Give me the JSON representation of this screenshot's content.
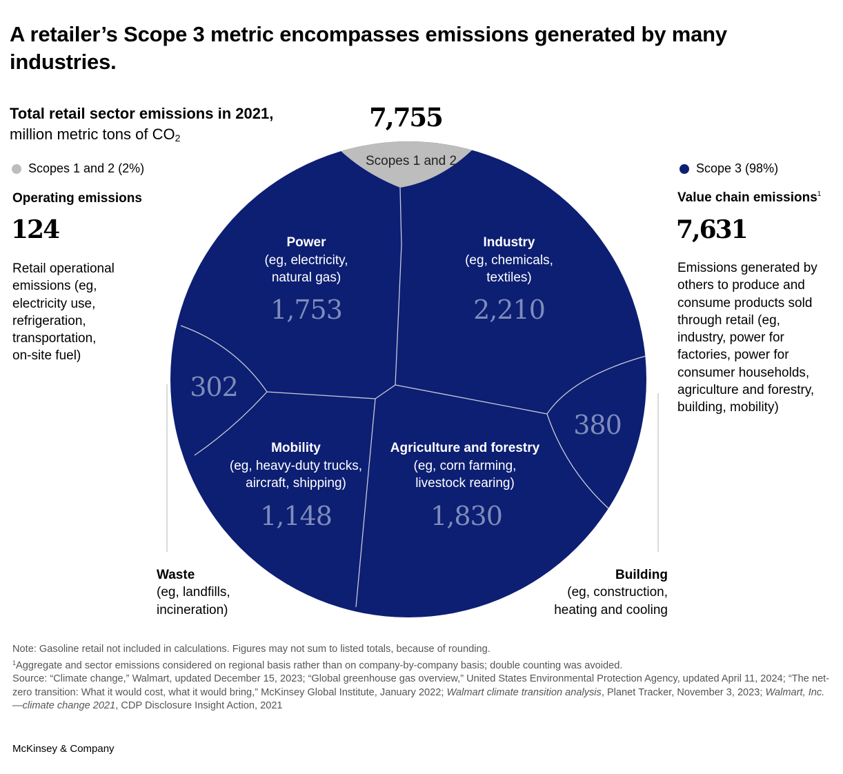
{
  "title": "A retailer’s Scope 3 metric encompasses emissions generated by many industries.",
  "subtitle": {
    "bold": "Total retail sector emissions in 2021,",
    "rest": " million metric tons of CO",
    "sub": "2"
  },
  "colors": {
    "scope3": "#0d1f73",
    "scope12": "#bdbdbd",
    "value_text": "#7f8cba",
    "divider": "#c8ccd8"
  },
  "left_panel": {
    "legend": "Scopes 1 and 2 (2%)",
    "heading": "Operating emissions",
    "value": "124",
    "description": [
      "Retail operational",
      "emissions (eg,",
      "electricity use,",
      "refrigeration,",
      "transportation,",
      "on-site fuel)"
    ]
  },
  "right_panel": {
    "legend": "Scope 3 (98%)",
    "heading": "Value chain emissions",
    "heading_note": "1",
    "value": "7,631",
    "description": [
      "Emissions generated by",
      "others to produce and",
      "consume products sold",
      "through retail (eg,",
      "industry, power for",
      "factories, power for",
      "consumer households,",
      "agriculture and forestry,",
      "building, mobility)"
    ]
  },
  "chart_data": {
    "type": "voronoi-treemap",
    "total": "7,755",
    "unit": "million metric tons of CO2",
    "segments": [
      {
        "name": "Scopes 1 and 2",
        "value": 124,
        "label": "",
        "scope": "Scopes 1 and 2"
      },
      {
        "name": "Power",
        "desc": [
          "(eg, electricity,",
          "natural gas)"
        ],
        "value": 1753,
        "label": "1,753",
        "scope": "Scope 3"
      },
      {
        "name": "Industry",
        "desc": [
          "(eg, chemicals,",
          "textiles)"
        ],
        "value": 2210,
        "label": "2,210",
        "scope": "Scope 3"
      },
      {
        "name": "Waste",
        "desc": [
          "(eg, landfills,",
          "incineration)"
        ],
        "value": 302,
        "label": "302",
        "scope": "Scope 3"
      },
      {
        "name": "Mobility",
        "desc": [
          "(eg, heavy-duty trucks,",
          "aircraft, shipping)"
        ],
        "value": 1148,
        "label": "1,148",
        "scope": "Scope 3"
      },
      {
        "name": "Agriculture and forestry",
        "desc": [
          "(eg, corn farming,",
          "livestock rearing)"
        ],
        "value": 1830,
        "label": "1,830",
        "scope": "Scope 3"
      },
      {
        "name": "Building",
        "desc": [
          "(eg, construction,",
          "heating and cooling"
        ],
        "value": 380,
        "label": "380",
        "scope": "Scope 3"
      }
    ]
  },
  "notes": {
    "note": "Note: Gasoline retail not included in calculations. Figures may not sum to listed totals, because of rounding.",
    "footnote_mark": "1",
    "footnote": "Aggregate and sector emissions considered on regional basis rather than on company-by-company basis; double counting was avoided.",
    "source_1": "Source: “Climate change,” Walmart, updated December 15, 2023; “Global greenhouse gas overview,” United States Environmental Protection Agency, updated April 11, 2024; “The net-zero transition: What it would cost, what it would bring,” McKinsey Global Institute, January 2022; ",
    "source_italic_1": "Walmart climate transition analysis",
    "source_2": ", Planet Tracker, November 3, 2023; ",
    "source_italic_2": "Walmart, Inc.—climate change 2021",
    "source_3": ", CDP Disclosure Insight Action, 2021"
  },
  "brand": "McKinsey & Company"
}
